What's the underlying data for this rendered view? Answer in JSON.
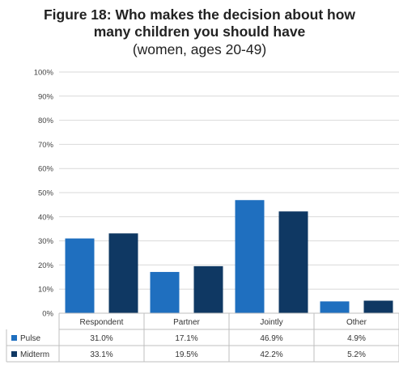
{
  "chart_data": {
    "type": "bar",
    "title": "Figure 18: Who makes the decision about how",
    "title_line2": "many children you should have",
    "subtitle": "(women, ages 20-49)",
    "categories": [
      "Respondent",
      "Partner",
      "Jointly",
      "Other"
    ],
    "series": [
      {
        "name": "Pulse",
        "color": "#1f6fbf",
        "values": [
          31.0,
          17.1,
          46.9,
          4.9
        ],
        "labels": [
          "31.0%",
          "17.1%",
          "46.9%",
          "4.9%"
        ]
      },
      {
        "name": "Midterm",
        "color": "#0f3863",
        "values": [
          33.1,
          19.5,
          42.2,
          5.2
        ],
        "labels": [
          "33.1%",
          "19.5%",
          "42.2%",
          "5.2%"
        ]
      }
    ],
    "ylim": [
      0,
      100
    ],
    "yticks": [
      "0%",
      "10%",
      "20%",
      "30%",
      "40%",
      "50%",
      "60%",
      "70%",
      "80%",
      "90%",
      "100%"
    ],
    "grid": true,
    "legend": "data-table-below"
  }
}
